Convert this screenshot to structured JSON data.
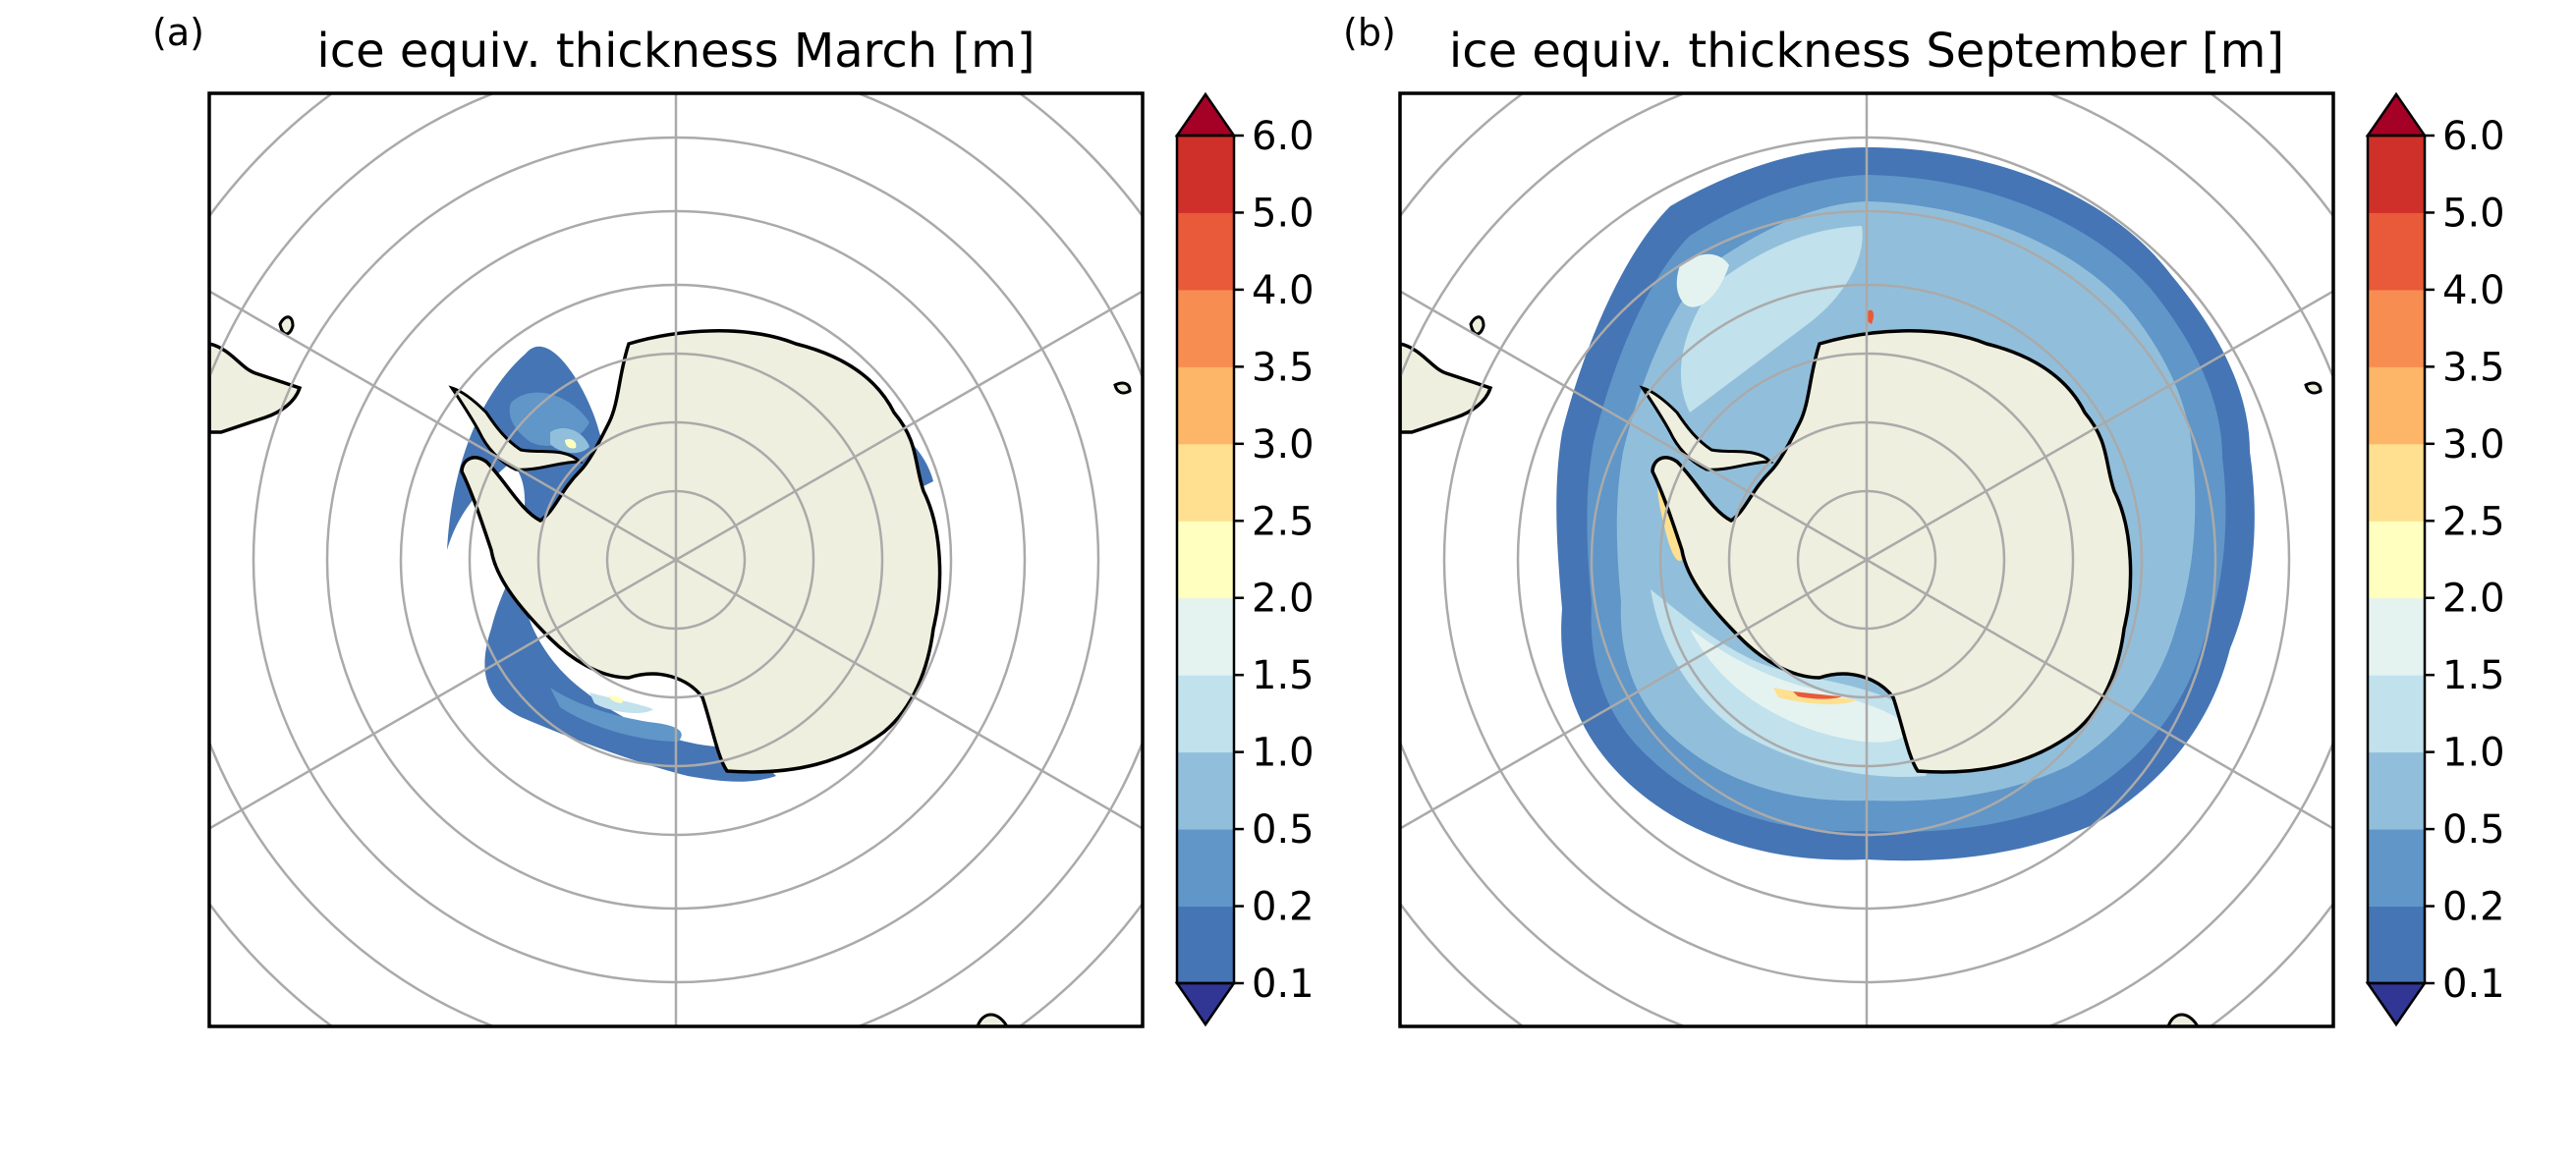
{
  "figure": {
    "panels": [
      {
        "panel_label": "(a)",
        "title": "ice equiv. thickness March [m]",
        "month": "March"
      },
      {
        "panel_label": "(b)",
        "title": "ice equiv. thickness September [m]",
        "month": "September"
      }
    ],
    "colorbar": {
      "tick_labels": [
        "0.1",
        "0.2",
        "0.5",
        "1.0",
        "1.5",
        "2.0",
        "2.5",
        "3.0",
        "3.5",
        "4.0",
        "5.0",
        "6.0"
      ],
      "levels": [
        0.1,
        0.2,
        0.5,
        1.0,
        1.5,
        2.0,
        2.5,
        3.0,
        3.5,
        4.0,
        5.0,
        6.0
      ],
      "colors": [
        "#4575b4",
        "#6096c8",
        "#91bfdb",
        "#c1e1ec",
        "#e4f3f0",
        "#ffffbf",
        "#fee090",
        "#fdb567",
        "#f88d52",
        "#e85a3a",
        "#d0302a"
      ],
      "under_color": "#313695",
      "over_color": "#a50026",
      "extend": "both"
    },
    "map_style": {
      "projection": "south-polar-stereographic",
      "land_color": "#efefdf",
      "coastline_color": "#000000",
      "gridline_color": "#aaaaaa",
      "grid": true
    }
  }
}
